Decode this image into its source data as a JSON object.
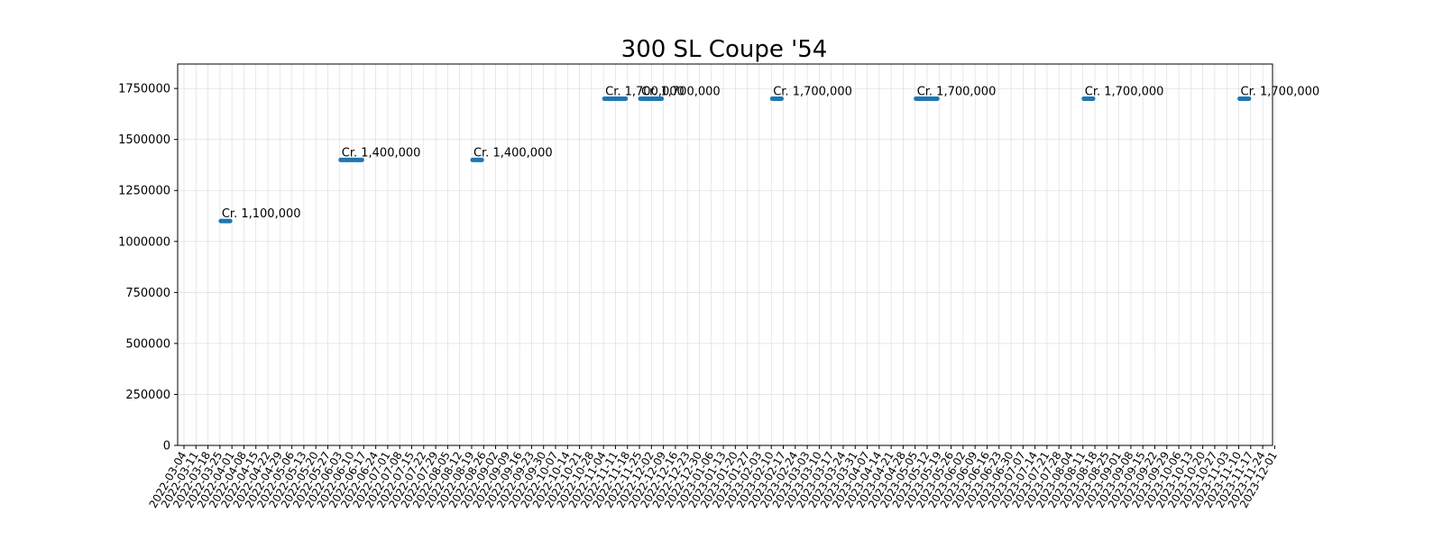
{
  "chart_data": {
    "type": "line",
    "title": "300 SL Coupe '54",
    "xlabel": "",
    "ylabel": "",
    "ylim": [
      0,
      1870000
    ],
    "yticks": [
      0,
      250000,
      500000,
      750000,
      1000000,
      1250000,
      1500000,
      1750000
    ],
    "grid": true,
    "x_dates": [
      "2022-03-04",
      "2022-03-11",
      "2022-03-18",
      "2022-03-25",
      "2022-04-01",
      "2022-04-08",
      "2022-04-15",
      "2022-04-22",
      "2022-04-29",
      "2022-05-06",
      "2022-05-13",
      "2022-05-20",
      "2022-05-27",
      "2022-06-03",
      "2022-06-10",
      "2022-06-17",
      "2022-06-24",
      "2022-07-01",
      "2022-07-08",
      "2022-07-15",
      "2022-07-22",
      "2022-07-29",
      "2022-08-05",
      "2022-08-12",
      "2022-08-19",
      "2022-08-26",
      "2022-09-02",
      "2022-09-09",
      "2022-09-16",
      "2022-09-23",
      "2022-09-30",
      "2022-10-07",
      "2022-10-14",
      "2022-10-21",
      "2022-10-28",
      "2022-11-04",
      "2022-11-11",
      "2022-11-18",
      "2022-11-25",
      "2022-12-02",
      "2022-12-09",
      "2022-12-16",
      "2022-12-23",
      "2022-12-30",
      "2023-01-06",
      "2023-01-13",
      "2023-01-20",
      "2023-01-27",
      "2023-02-03",
      "2023-02-10",
      "2023-02-17",
      "2023-02-24",
      "2023-03-03",
      "2023-03-10",
      "2023-03-17",
      "2023-03-24",
      "2023-03-31",
      "2023-04-07",
      "2023-04-14",
      "2023-04-21",
      "2023-04-28",
      "2023-05-05",
      "2023-05-12",
      "2023-05-19",
      "2023-05-26",
      "2023-06-02",
      "2023-06-09",
      "2023-06-16",
      "2023-06-23",
      "2023-06-30",
      "2023-07-07",
      "2023-07-14",
      "2023-07-21",
      "2023-07-28",
      "2023-08-04",
      "2023-08-11",
      "2023-08-18",
      "2023-08-25",
      "2023-09-01",
      "2023-09-08",
      "2023-09-15",
      "2023-09-22",
      "2023-09-29",
      "2023-10-06",
      "2023-10-13",
      "2023-10-20",
      "2023-10-27",
      "2023-11-03",
      "2023-11-10",
      "2023-11-17",
      "2023-11-24",
      "2023-12-01"
    ],
    "segments": [
      {
        "start": "2022-03-25",
        "end": "2022-04-01",
        "value": 1100000,
        "label": "Cr. 1,100,000"
      },
      {
        "start": "2022-06-03",
        "end": "2022-06-17",
        "value": 1400000,
        "label": "Cr. 1,400,000"
      },
      {
        "start": "2022-08-19",
        "end": "2022-08-26",
        "value": 1400000,
        "label": "Cr. 1,400,000"
      },
      {
        "start": "2022-11-04",
        "end": "2022-11-18",
        "value": 1700000,
        "label": "Cr. 1,700,000"
      },
      {
        "start": "2022-11-25",
        "end": "2022-12-09",
        "value": 1700000,
        "label": "Cr. 1,700,000"
      },
      {
        "start": "2023-02-10",
        "end": "2023-02-17",
        "value": 1700000,
        "label": "Cr. 1,700,000"
      },
      {
        "start": "2023-05-05",
        "end": "2023-05-19",
        "value": 1700000,
        "label": "Cr. 1,700,000"
      },
      {
        "start": "2023-08-11",
        "end": "2023-08-18",
        "value": 1700000,
        "label": "Cr. 1,700,000"
      },
      {
        "start": "2023-11-10",
        "end": "2023-11-17",
        "value": 1700000,
        "label": "Cr. 1,700,000"
      }
    ]
  }
}
